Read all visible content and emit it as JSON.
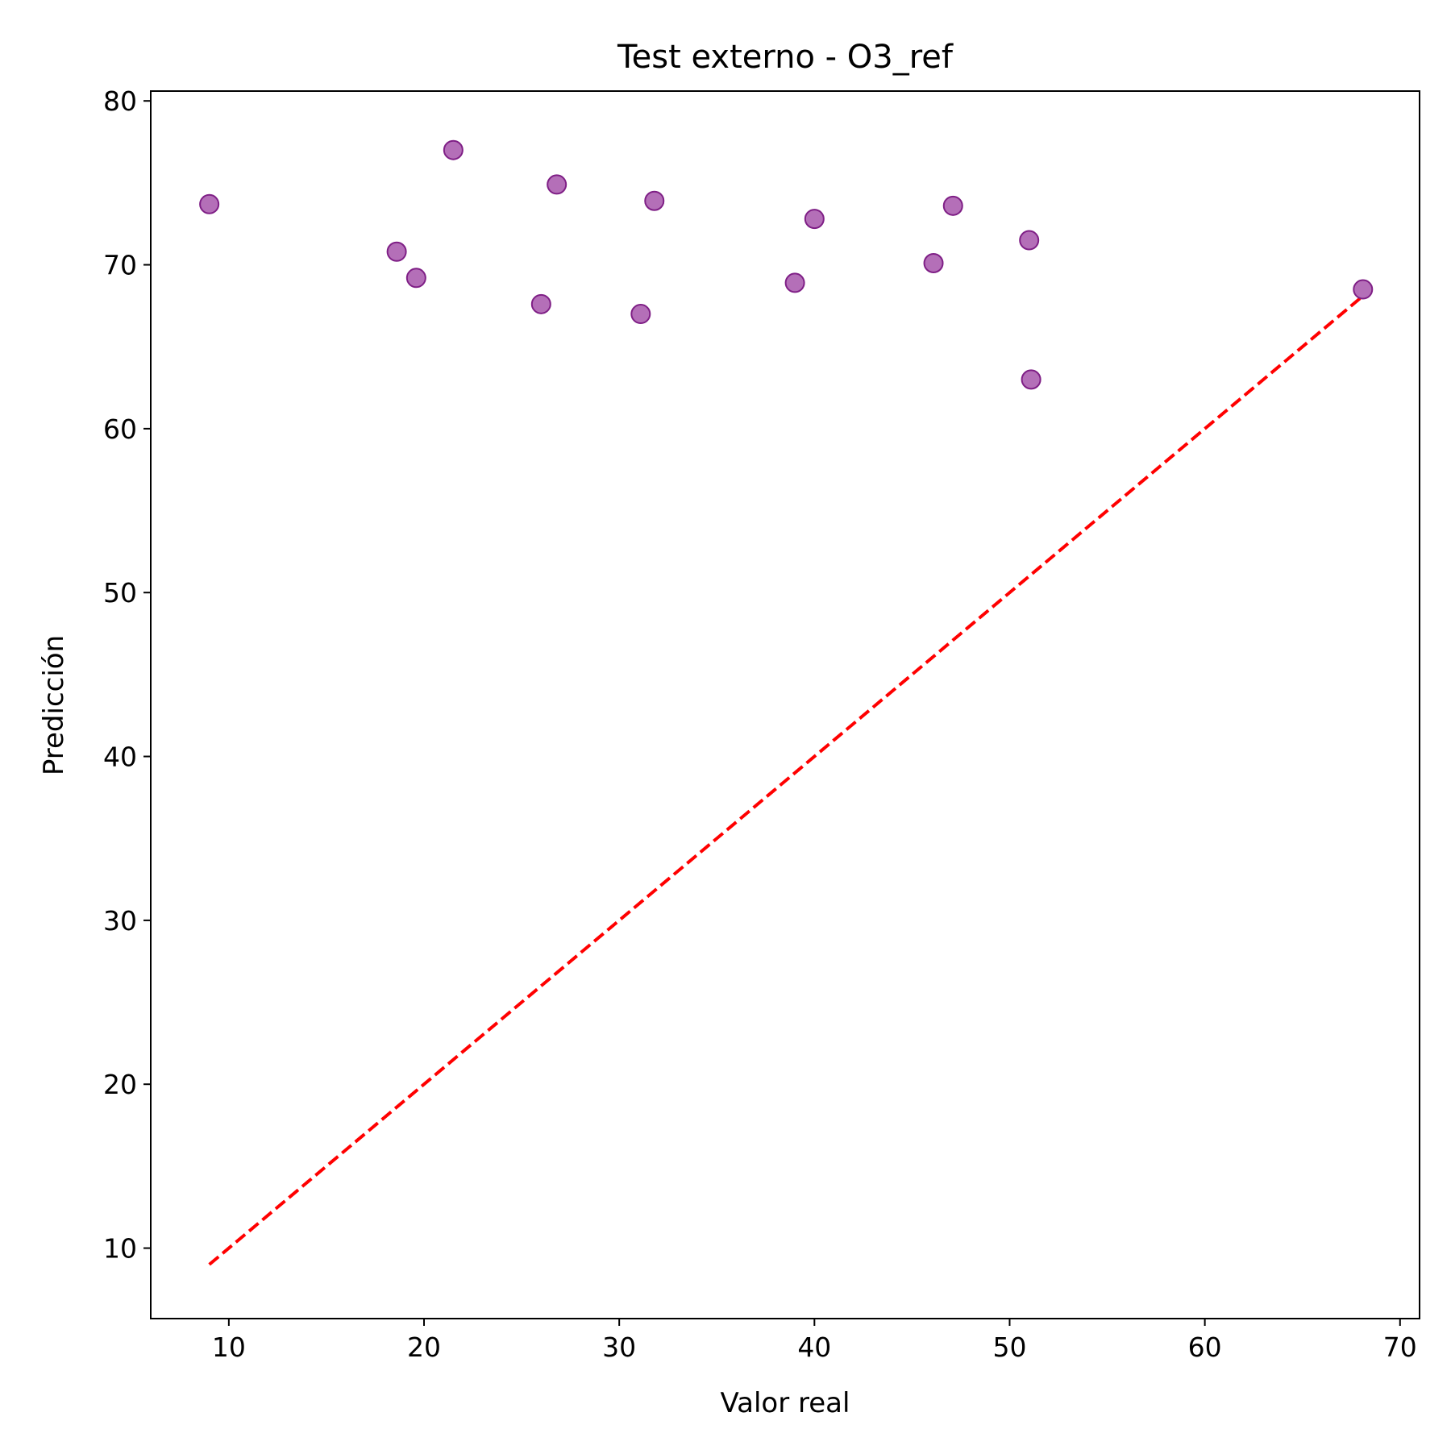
{
  "chart_data": {
    "type": "scatter",
    "title": "Test externo - O3_ref",
    "xlabel": "Valor real",
    "ylabel": "Predicción",
    "xlim": [
      6,
      71
    ],
    "ylim": [
      5.7,
      80.6
    ],
    "xticks": [
      10,
      20,
      30,
      40,
      50,
      60,
      70
    ],
    "yticks": [
      10,
      20,
      30,
      40,
      50,
      60,
      70,
      80
    ],
    "grid": false,
    "series": [
      {
        "marker_color": "#9b3fa0",
        "marker_edge_color": "#7f1f86",
        "points": [
          {
            "x": 9.0,
            "y": 73.7
          },
          {
            "x": 18.6,
            "y": 70.8
          },
          {
            "x": 19.6,
            "y": 69.2
          },
          {
            "x": 21.5,
            "y": 77.0
          },
          {
            "x": 26.0,
            "y": 67.6
          },
          {
            "x": 26.8,
            "y": 74.9
          },
          {
            "x": 31.1,
            "y": 67.0
          },
          {
            "x": 31.8,
            "y": 73.9
          },
          {
            "x": 39.0,
            "y": 68.9
          },
          {
            "x": 40.0,
            "y": 72.8
          },
          {
            "x": 46.1,
            "y": 70.1
          },
          {
            "x": 47.1,
            "y": 73.6
          },
          {
            "x": 51.0,
            "y": 71.5
          },
          {
            "x": 51.1,
            "y": 63.0
          },
          {
            "x": 68.1,
            "y": 68.5
          }
        ]
      }
    ],
    "reference_line": {
      "style": "dashed",
      "color": "#ff0000",
      "x": [
        9.0,
        68.1
      ],
      "y": [
        9.0,
        68.1
      ]
    }
  }
}
